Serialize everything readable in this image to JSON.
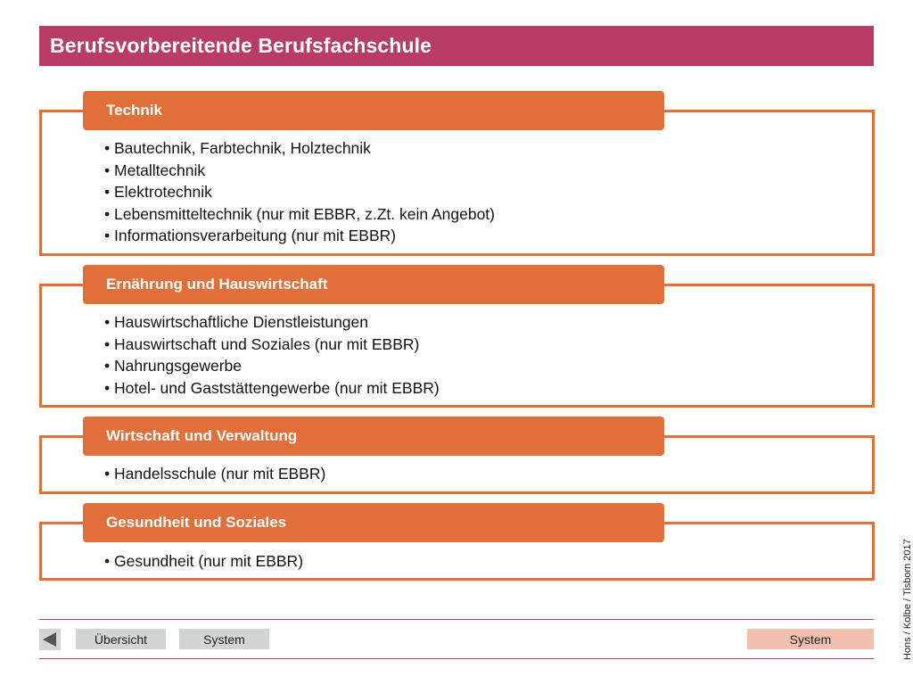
{
  "title": "Berufsvorbereitende Berufsfachschule",
  "sections": [
    {
      "header": "Technik",
      "items": [
        "Bautechnik, Farbtechnik, Holztechnik",
        "Metalltechnik",
        "Elektrotechnik",
        "Lebensmitteltechnik (nur mit EBBR, z.Zt. kein Angebot)",
        "Informationsverarbeitung (nur mit EBBR)"
      ]
    },
    {
      "header": "Ernährung und Hauswirtschaft",
      "items": [
        "Hauswirtschaftliche Dienstleistungen",
        "Hauswirtschaft und Soziales (nur mit EBBR)",
        "Nahrungsgewerbe",
        "Hotel- und Gaststättengewerbe (nur mit EBBR)"
      ]
    },
    {
      "header": "Wirtschaft und Verwaltung",
      "items": [
        "Handelsschule (nur mit EBBR)"
      ]
    },
    {
      "header": "Gesundheit und Soziales",
      "items": [
        "Gesundheit (nur mit EBBR)"
      ]
    }
  ],
  "footer": {
    "back_icon": "triangle-left-icon",
    "overview_label": "Übersicht",
    "system_label": "System",
    "system_right_label": "System"
  },
  "credit": "Hons / Kolbe / Tisborn 2017",
  "colors": {
    "title_bar": "#b93c63",
    "accent_orange": "#e06f3a",
    "nav_gray": "#d4d4d4",
    "nav_pink": "#f3c0b0"
  }
}
